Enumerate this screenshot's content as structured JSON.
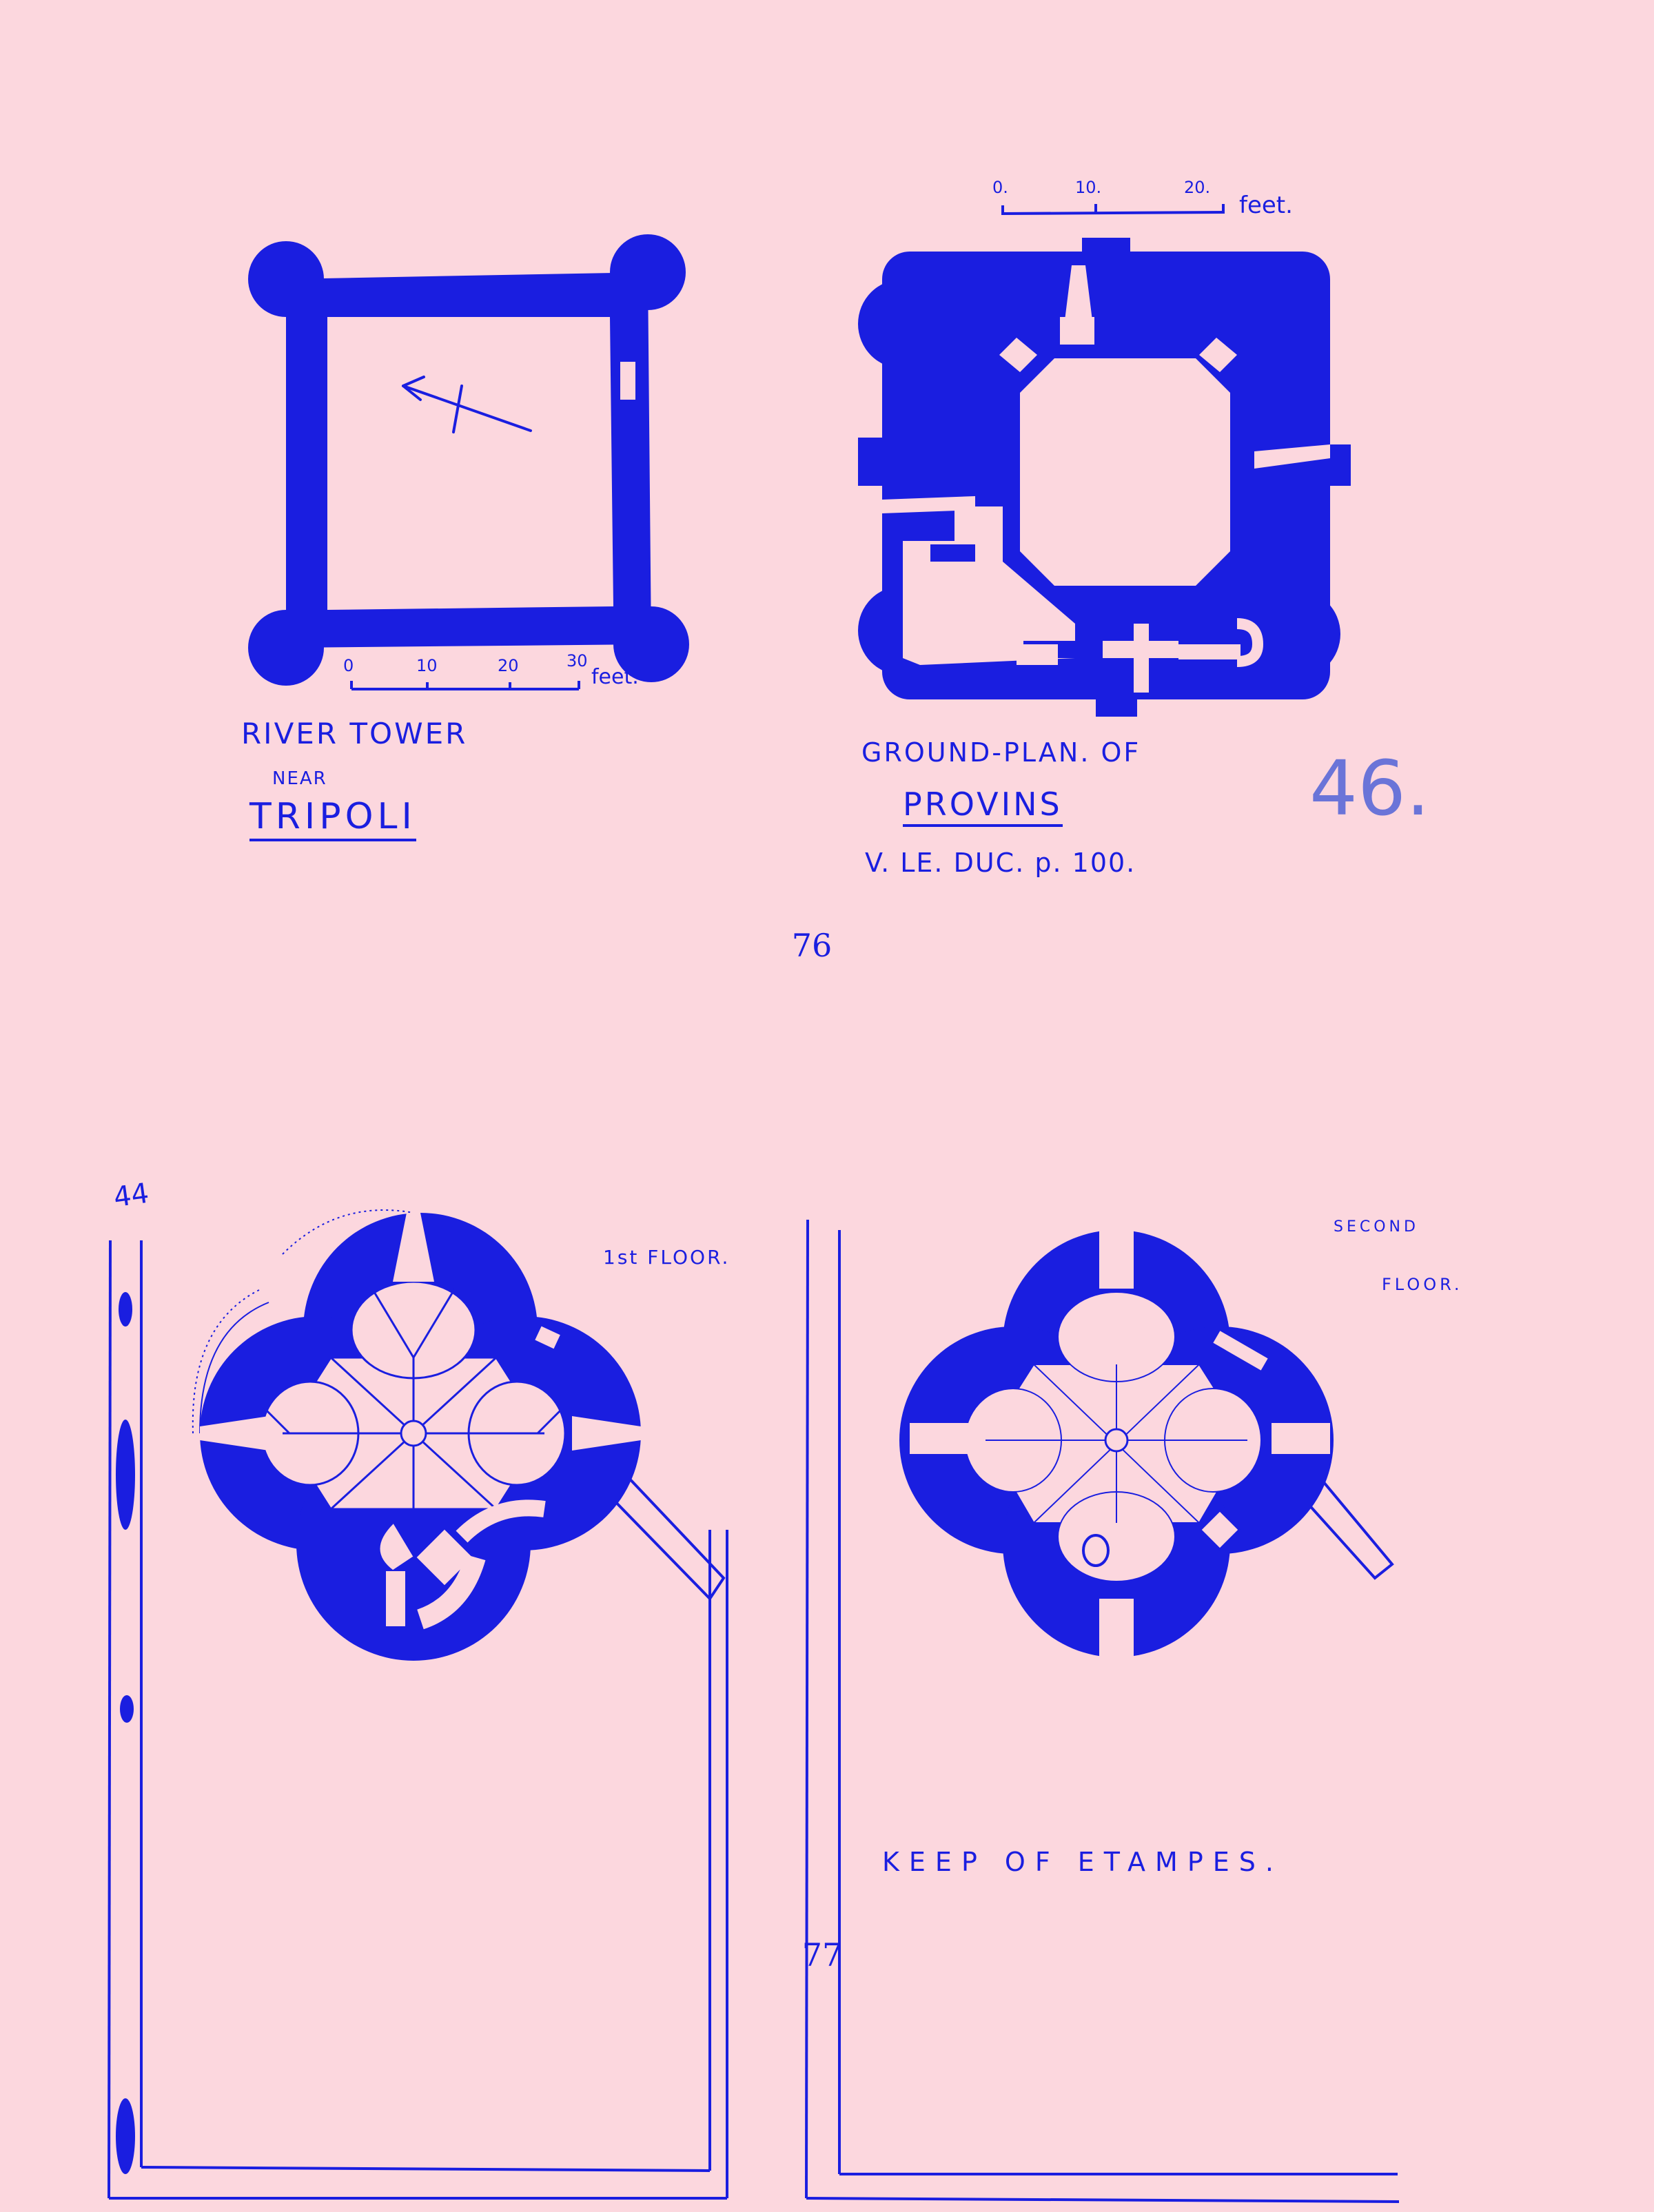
{
  "colors": {
    "background": "#fcd7de",
    "ink": "#1a1ee0",
    "pencil": "#6a74d8"
  },
  "top_left": {
    "scale": {
      "marks": [
        "0",
        "10",
        "20",
        "30"
      ],
      "unit": "feet."
    },
    "caption_line1": "RIVER TOWER",
    "caption_line2": "NEAR",
    "caption_line3": "TRIPOLI"
  },
  "top_right": {
    "scale": {
      "marks": [
        "0.",
        "10.",
        "20."
      ],
      "unit": "feet."
    },
    "caption_line1": "GROUND-PLAN. OF",
    "caption_line2": "PROVINS",
    "caption_line3": "V. LE. DUC. p. 100.",
    "pencil_number": "46."
  },
  "page_number_top": "76",
  "bottom": {
    "margin_mark": "44",
    "first_floor_label": "1st FLOOR.",
    "second_floor_label_1": "SECOND",
    "second_floor_label_2": "FLOOR.",
    "caption": "KEEP OF ETAMPES."
  },
  "page_number_bottom": "77"
}
